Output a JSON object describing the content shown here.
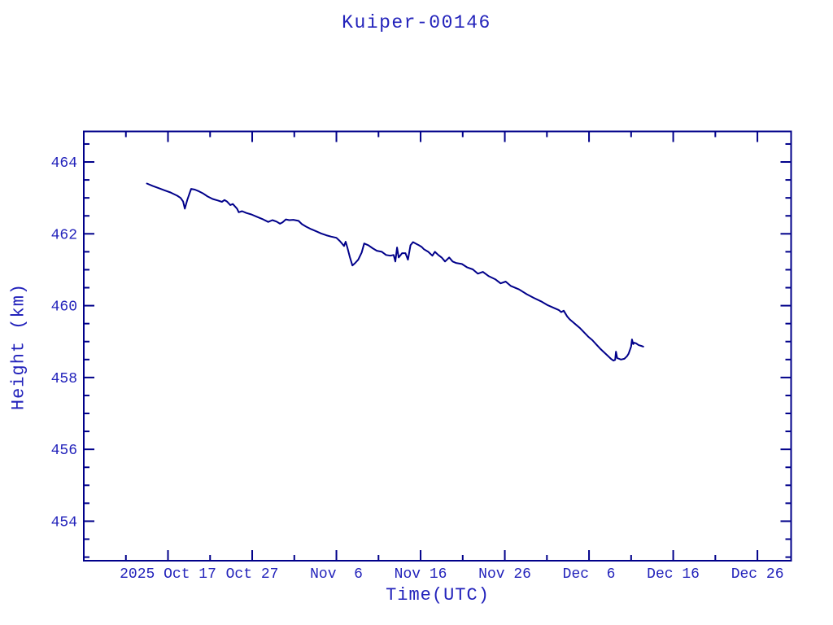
{
  "colors": {
    "background": "#ffffff",
    "axis": "#00008a",
    "line": "#00008a",
    "text": "#2323bb"
  },
  "chart_data": {
    "type": "line",
    "title": "Kuiper-00146",
    "xlabel": "Time(UTC)",
    "ylabel": "Height (km)",
    "grid": false,
    "legend": null,
    "x_unit": "days, 0 = left edge of axis (2025 Oct 7), derived from date tick labels",
    "xlim_days": [
      0,
      84
    ],
    "ylim_km": [
      452.9,
      464.85
    ],
    "x_major_ticks": [
      {
        "day": 10,
        "label": "2025 Oct 17"
      },
      {
        "day": 20,
        "label": "Oct 27"
      },
      {
        "day": 30,
        "label": "Nov  6"
      },
      {
        "day": 40,
        "label": "Nov 16"
      },
      {
        "day": 50,
        "label": "Nov 26"
      },
      {
        "day": 60,
        "label": "Dec  6"
      },
      {
        "day": 70,
        "label": "Dec 16"
      },
      {
        "day": 80,
        "label": "Dec 26"
      }
    ],
    "x_minor_tick_days": [
      5,
      15,
      25,
      35,
      45,
      55,
      65,
      75
    ],
    "y_major_ticks_km": [
      454,
      456,
      458,
      460,
      462,
      464
    ],
    "y_minor_ticks_km": [
      453,
      453.5,
      454.5,
      455,
      455.5,
      456.5,
      457,
      457.5,
      458.5,
      459,
      459.5,
      460.5,
      461,
      461.5,
      462.5,
      463,
      463.5,
      464.5
    ],
    "series": [
      {
        "name": "Kuiper-00146 height",
        "points_day_km": [
          [
            7.5,
            463.4
          ],
          [
            8.2,
            463.33
          ],
          [
            8.9,
            463.27
          ],
          [
            9.6,
            463.21
          ],
          [
            10.3,
            463.15
          ],
          [
            11.1,
            463.06
          ],
          [
            11.5,
            463.0
          ],
          [
            11.8,
            462.9
          ],
          [
            12.0,
            462.7
          ],
          [
            12.3,
            462.95
          ],
          [
            12.6,
            463.15
          ],
          [
            12.75,
            463.25
          ],
          [
            13.2,
            463.23
          ],
          [
            13.7,
            463.18
          ],
          [
            14.2,
            463.12
          ],
          [
            14.7,
            463.04
          ],
          [
            15.3,
            462.97
          ],
          [
            15.9,
            462.93
          ],
          [
            16.4,
            462.89
          ],
          [
            16.7,
            462.94
          ],
          [
            17.0,
            462.9
          ],
          [
            17.4,
            462.8
          ],
          [
            17.7,
            462.83
          ],
          [
            18.2,
            462.7
          ],
          [
            18.4,
            462.6
          ],
          [
            18.8,
            462.63
          ],
          [
            19.3,
            462.58
          ],
          [
            19.9,
            462.54
          ],
          [
            20.6,
            462.47
          ],
          [
            21.3,
            462.4
          ],
          [
            21.9,
            462.33
          ],
          [
            22.4,
            462.38
          ],
          [
            22.9,
            462.34
          ],
          [
            23.3,
            462.28
          ],
          [
            23.6,
            462.32
          ],
          [
            24.0,
            462.4
          ],
          [
            24.4,
            462.38
          ],
          [
            24.9,
            462.39
          ],
          [
            25.5,
            462.36
          ],
          [
            25.9,
            462.27
          ],
          [
            26.4,
            462.2
          ],
          [
            27.0,
            462.13
          ],
          [
            27.6,
            462.07
          ],
          [
            28.2,
            462.01
          ],
          [
            28.8,
            461.96
          ],
          [
            29.4,
            461.92
          ],
          [
            30.0,
            461.89
          ],
          [
            30.4,
            461.8
          ],
          [
            30.7,
            461.72
          ],
          [
            30.9,
            461.66
          ],
          [
            31.1,
            461.78
          ],
          [
            31.3,
            461.62
          ],
          [
            31.6,
            461.35
          ],
          [
            31.9,
            461.12
          ],
          [
            32.2,
            461.18
          ],
          [
            32.6,
            461.28
          ],
          [
            33.0,
            461.48
          ],
          [
            33.3,
            461.73
          ],
          [
            33.8,
            461.68
          ],
          [
            34.3,
            461.6
          ],
          [
            34.8,
            461.53
          ],
          [
            35.4,
            461.5
          ],
          [
            35.9,
            461.41
          ],
          [
            36.4,
            461.39
          ],
          [
            36.8,
            461.41
          ],
          [
            37.0,
            461.23
          ],
          [
            37.2,
            461.62
          ],
          [
            37.4,
            461.34
          ],
          [
            37.8,
            461.46
          ],
          [
            38.2,
            461.46
          ],
          [
            38.5,
            461.28
          ],
          [
            38.8,
            461.68
          ],
          [
            39.1,
            461.77
          ],
          [
            39.5,
            461.72
          ],
          [
            39.8,
            461.68
          ],
          [
            40.1,
            461.64
          ],
          [
            40.4,
            461.57
          ],
          [
            40.9,
            461.5
          ],
          [
            41.4,
            461.39
          ],
          [
            41.7,
            461.5
          ],
          [
            42.1,
            461.41
          ],
          [
            42.5,
            461.34
          ],
          [
            42.9,
            461.23
          ],
          [
            43.4,
            461.34
          ],
          [
            43.8,
            461.23
          ],
          [
            44.2,
            461.19
          ],
          [
            44.9,
            461.16
          ],
          [
            45.5,
            461.07
          ],
          [
            46.2,
            461.01
          ],
          [
            46.8,
            460.89
          ],
          [
            47.4,
            460.94
          ],
          [
            48.1,
            460.82
          ],
          [
            48.9,
            460.73
          ],
          [
            49.5,
            460.62
          ],
          [
            50.1,
            460.67
          ],
          [
            50.7,
            460.55
          ],
          [
            51.7,
            460.45
          ],
          [
            52.6,
            460.32
          ],
          [
            53.4,
            460.22
          ],
          [
            54.3,
            460.12
          ],
          [
            55.1,
            460.01
          ],
          [
            55.9,
            459.93
          ],
          [
            56.4,
            459.88
          ],
          [
            56.7,
            459.82
          ],
          [
            57.0,
            459.86
          ],
          [
            57.4,
            459.7
          ],
          [
            57.7,
            459.62
          ],
          [
            58.1,
            459.54
          ],
          [
            58.6,
            459.44
          ],
          [
            58.95,
            459.37
          ],
          [
            59.9,
            459.14
          ],
          [
            60.4,
            459.04
          ],
          [
            60.9,
            458.91
          ],
          [
            61.3,
            458.81
          ],
          [
            61.7,
            458.72
          ],
          [
            62.2,
            458.61
          ],
          [
            62.6,
            458.52
          ],
          [
            62.9,
            458.47
          ],
          [
            63.1,
            458.49
          ],
          [
            63.2,
            458.72
          ],
          [
            63.35,
            458.54
          ],
          [
            63.8,
            458.5
          ],
          [
            64.2,
            458.52
          ],
          [
            64.5,
            458.59
          ],
          [
            64.7,
            458.66
          ],
          [
            65.0,
            458.86
          ],
          [
            65.1,
            459.06
          ],
          [
            65.25,
            458.93
          ],
          [
            65.35,
            458.97
          ],
          [
            65.6,
            458.95
          ],
          [
            65.9,
            458.9
          ],
          [
            66.2,
            458.88
          ],
          [
            66.45,
            458.86
          ]
        ]
      }
    ]
  }
}
